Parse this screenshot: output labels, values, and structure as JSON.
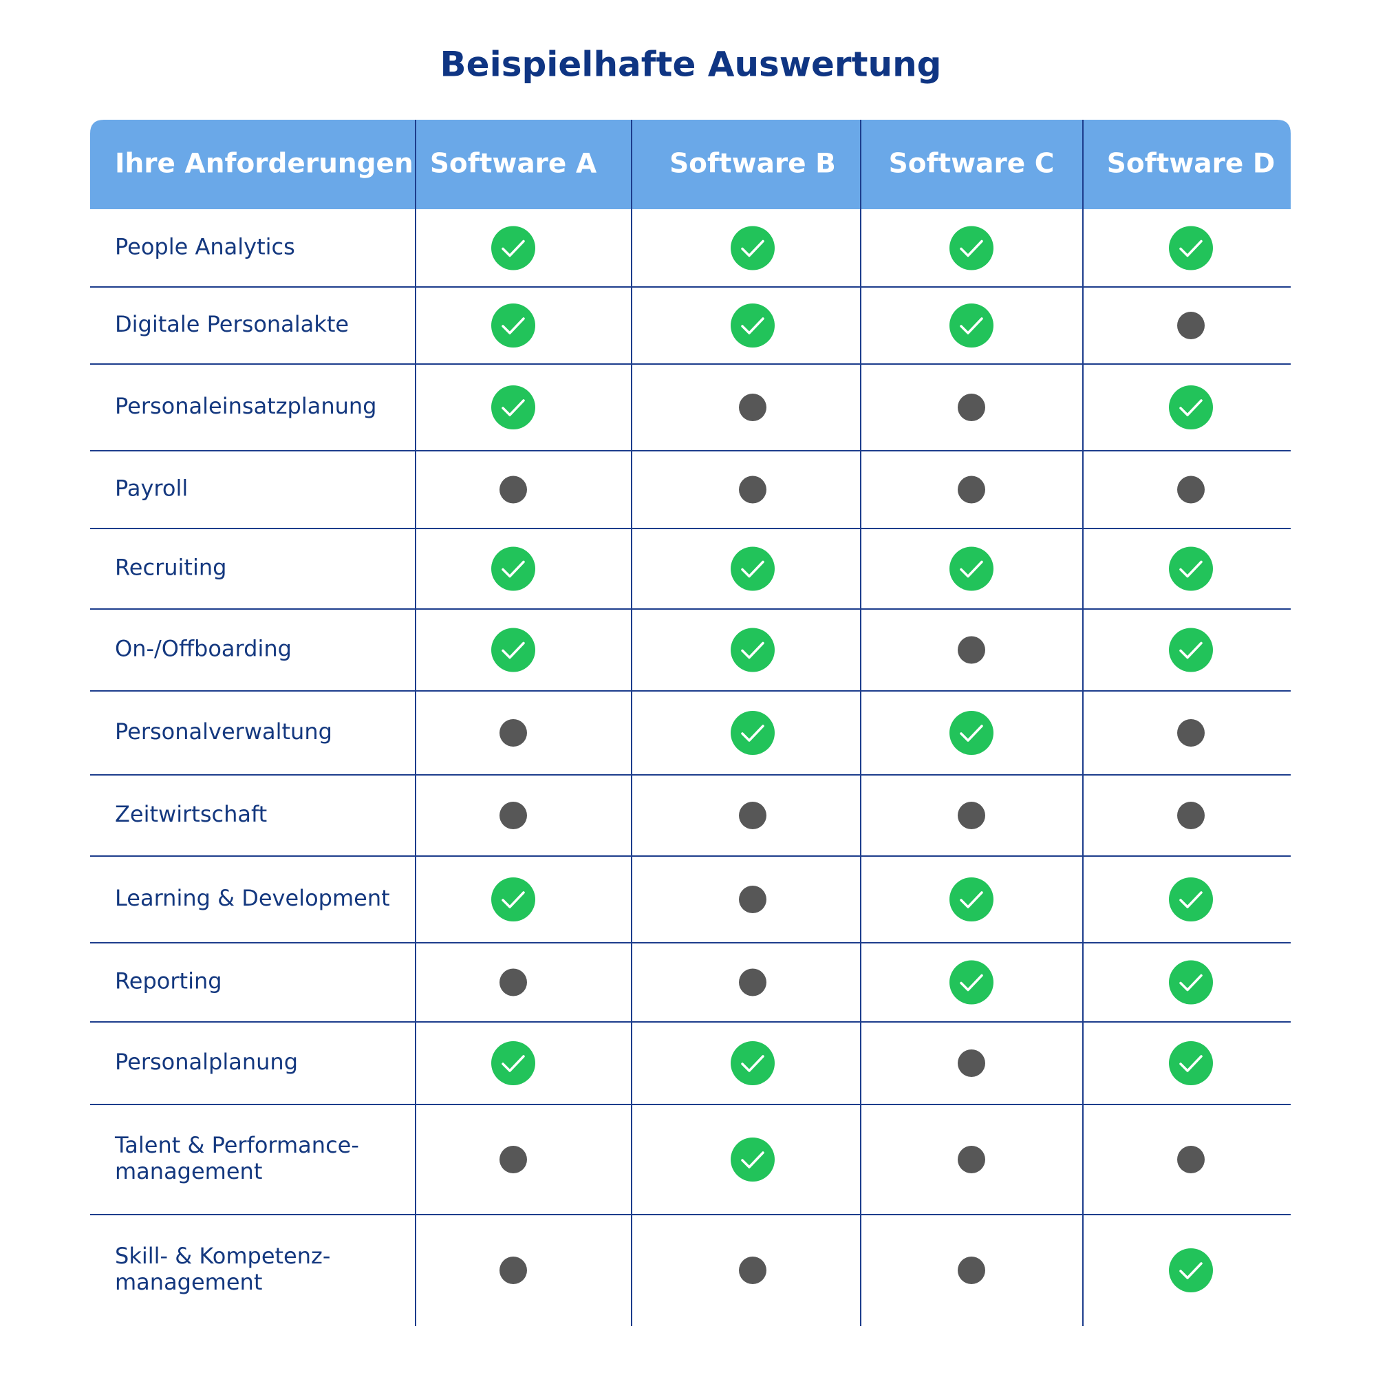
{
  "title": "Beispielhafte Auswertung",
  "table": {
    "columns": [
      "Ihre Anforderungen",
      "Software A",
      "Software B",
      "Software C",
      "Software D"
    ],
    "rows": [
      {
        "label": "People Analytics",
        "support": [
          true,
          true,
          true,
          true
        ]
      },
      {
        "label": "Digitale Personalakte",
        "support": [
          true,
          true,
          true,
          false
        ]
      },
      {
        "label": "Personaleinsatzplanung",
        "support": [
          true,
          false,
          false,
          true
        ]
      },
      {
        "label": "Payroll",
        "support": [
          false,
          false,
          false,
          false
        ]
      },
      {
        "label": "Recruiting",
        "support": [
          true,
          true,
          true,
          true
        ]
      },
      {
        "label": "On-/Offboarding",
        "support": [
          true,
          true,
          false,
          true
        ]
      },
      {
        "label": "Personalverwaltung",
        "support": [
          false,
          true,
          true,
          false
        ]
      },
      {
        "label": "Zeitwirtschaft",
        "support": [
          false,
          false,
          false,
          false
        ]
      },
      {
        "label": "Learning & Development",
        "support": [
          true,
          false,
          true,
          true
        ]
      },
      {
        "label": "Reporting",
        "support": [
          false,
          false,
          true,
          true
        ]
      },
      {
        "label": "Personalplanung",
        "support": [
          true,
          true,
          false,
          true
        ]
      },
      {
        "label": [
          "Talent & Performance-",
          "management"
        ],
        "support": [
          false,
          true,
          false,
          false
        ]
      },
      {
        "label": [
          "Skill- & Kompetenz-",
          "management"
        ],
        "support": [
          false,
          false,
          false,
          true
        ]
      }
    ]
  }
}
